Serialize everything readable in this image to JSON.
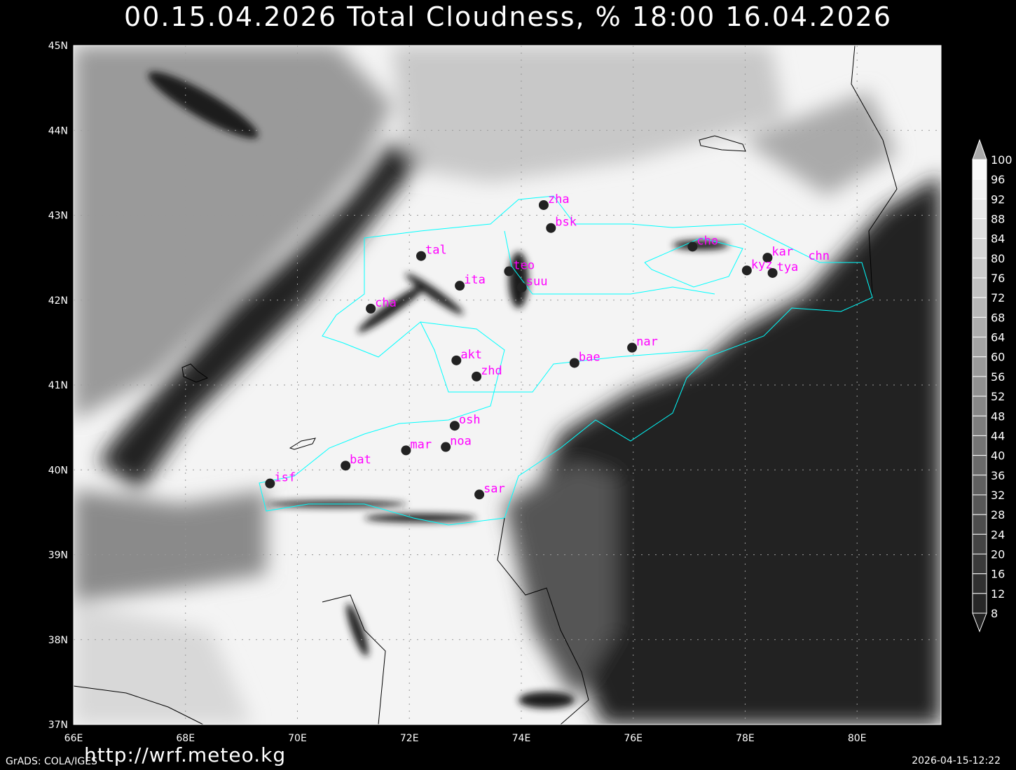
{
  "title": "00.15.04.2026 Total Cloudness, % 18:00 16.04.2026",
  "map": {
    "lon_range": [
      66,
      81.5
    ],
    "lat_range": [
      37,
      45
    ],
    "lon_ticks": [
      "66E",
      "68E",
      "70E",
      "72E",
      "74E",
      "76E",
      "78E",
      "80E"
    ],
    "lat_ticks": [
      "37N",
      "38N",
      "39N",
      "40N",
      "41N",
      "42N",
      "43N",
      "44N",
      "45N"
    ],
    "grid": true,
    "border_color": "#00ffff",
    "station_label_color": "#ff00ff",
    "stations": [
      {
        "name": "zha",
        "lon": 74.4,
        "lat": 43.12
      },
      {
        "name": "bsk",
        "lon": 74.53,
        "lat": 42.85
      },
      {
        "name": "cho",
        "lon": 77.06,
        "lat": 42.63
      },
      {
        "name": "tal",
        "lon": 72.21,
        "lat": 42.52
      },
      {
        "name": "kar",
        "lon": 78.4,
        "lat": 42.5
      },
      {
        "name": "kyz",
        "lon": 78.03,
        "lat": 42.35
      },
      {
        "name": "tya",
        "lon": 78.49,
        "lat": 42.32
      },
      {
        "name": "chn",
        "lon": 79.05,
        "lat": 42.45,
        "hidden_dot": true
      },
      {
        "name": "teo",
        "lon": 73.78,
        "lat": 42.34
      },
      {
        "name": "ita",
        "lon": 72.9,
        "lat": 42.17
      },
      {
        "name": "suu",
        "lon": 74.01,
        "lat": 42.15
      },
      {
        "name": "cha",
        "lon": 71.31,
        "lat": 41.9
      },
      {
        "name": "nar",
        "lon": 75.98,
        "lat": 41.44
      },
      {
        "name": "bae",
        "lon": 74.95,
        "lat": 41.26
      },
      {
        "name": "akt",
        "lon": 72.84,
        "lat": 41.29
      },
      {
        "name": "zhd",
        "lon": 73.2,
        "lat": 41.1
      },
      {
        "name": "osh",
        "lon": 72.81,
        "lat": 40.52
      },
      {
        "name": "mar",
        "lon": 71.94,
        "lat": 40.23
      },
      {
        "name": "noa",
        "lon": 72.65,
        "lat": 40.27
      },
      {
        "name": "bat",
        "lon": 70.86,
        "lat": 40.05
      },
      {
        "name": "isf",
        "lon": 69.51,
        "lat": 39.84
      },
      {
        "name": "sar",
        "lon": 73.25,
        "lat": 39.71
      }
    ]
  },
  "colorbar": {
    "levels": [
      "100",
      "96",
      "92",
      "88",
      "84",
      "80",
      "76",
      "72",
      "68",
      "64",
      "60",
      "56",
      "52",
      "48",
      "44",
      "40",
      "36",
      "32",
      "28",
      "24",
      "20",
      "16",
      "12",
      "8"
    ]
  },
  "footer": {
    "url": "http://wrf.meteo.kg",
    "credit": "GrADS: COLA/IGES",
    "timestamp": "2026-04-15-12:22"
  }
}
